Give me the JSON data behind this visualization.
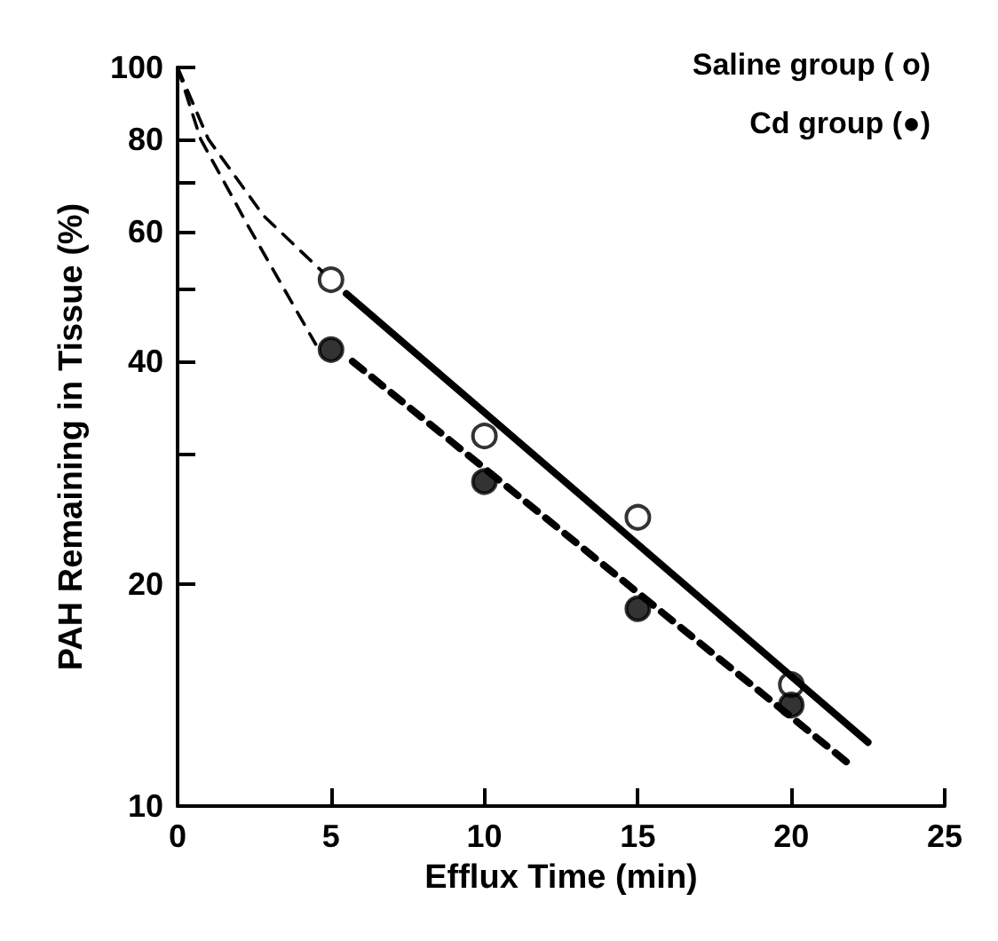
{
  "chart_data": {
    "type": "scatter",
    "xlabel": "Efflux Time (min)",
    "ylabel": "PAH Remaining in Tissue (%)",
    "xlim": [
      0,
      25
    ],
    "xticks": [
      0,
      5,
      10,
      15,
      20,
      25
    ],
    "ylim": [
      10,
      100
    ],
    "yticks": [
      10,
      20,
      {
        "value": 30,
        "label": null
      },
      40,
      {
        "value": 50,
        "label": null
      },
      60,
      {
        "value": 70,
        "label": null
      },
      80,
      100
    ],
    "log": "y",
    "grid": false,
    "annotations": [
      "Saline group ( o)",
      "Cd group (●)"
    ],
    "series": [
      {
        "marker": "circle",
        "color": "#ffffff",
        "x": [
          5,
          10,
          15,
          20
        ],
        "values": [
          51.6,
          31.7,
          24.6,
          14.6
        ]
      },
      {
        "marker": "circle",
        "color": "#000000",
        "x": [
          5,
          10,
          15,
          20
        ],
        "values": [
          41.5,
          27.5,
          18.5,
          13.7
        ]
      },
      {
        "type": "line",
        "marker": "none",
        "line_style": "solid",
        "color": "#000000",
        "x": [
          5.5,
          22.5
        ],
        "values": [
          49.4,
          12.2
        ]
      },
      {
        "type": "line",
        "marker": "none",
        "line_style": "dashed",
        "color": "#000000",
        "x": [
          5.7,
          22
        ],
        "values": [
          40,
          11.3
        ]
      },
      {
        "type": "line",
        "marker": "none",
        "line_style": "dashed",
        "color": "#000000",
        "x": [
          0,
          1,
          2.8,
          4.7
        ],
        "values": [
          100,
          80,
          63,
          53
        ]
      },
      {
        "type": "line",
        "marker": "none",
        "line_style": "dashed",
        "color": "#000000",
        "x": [
          0,
          0.75,
          2.3,
          4.5
        ],
        "values": [
          100,
          80,
          61,
          42.2
        ]
      }
    ]
  }
}
